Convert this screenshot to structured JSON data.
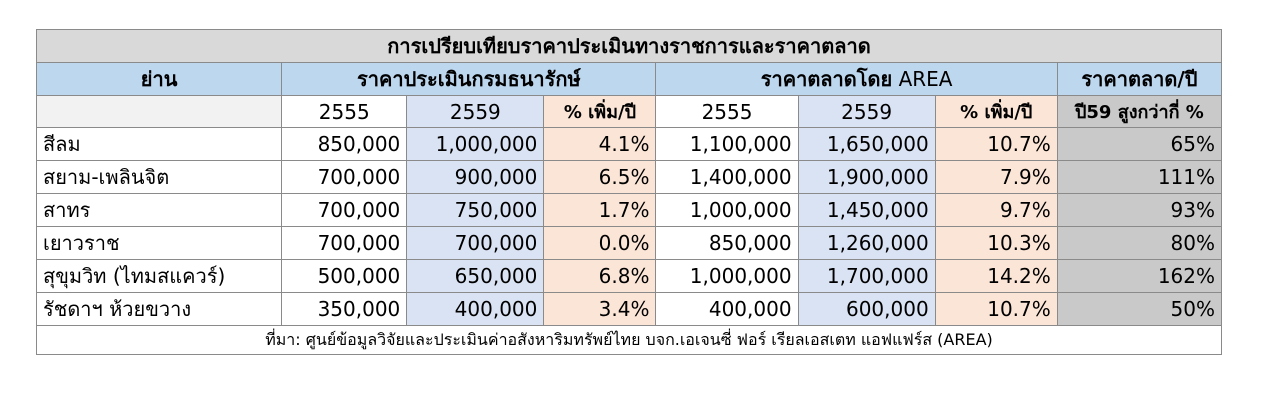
{
  "title": "การเปรียบเทียบราคาประเมินทางราชการและราคาตลาด",
  "headers": {
    "area": "ย่าน",
    "gov_price": "ราคาประเมินกรมธนารักษ์",
    "market_price_prefix": "ราคาตลาดโดย",
    "market_price_suffix": "AREA",
    "market_ratio": "ราคาตลาด/ปี"
  },
  "subheaders": {
    "blank": "",
    "gov_2555": "2555",
    "gov_2559": "2559",
    "gov_growth": "% เพิ่ม/ปี",
    "mkt_2555": "2555",
    "mkt_2559": "2559",
    "mkt_growth": "% เพิ่ม/ปี",
    "higher": "ปี59 สูงกว่ากี่ %"
  },
  "rows": [
    {
      "area": "สีลม",
      "gov_2555": "850,000",
      "gov_2559": "1,000,000",
      "gov_growth": "4.1%",
      "mkt_2555": "1,100,000",
      "mkt_2559": "1,650,000",
      "mkt_growth": "10.7%",
      "higher": "65%"
    },
    {
      "area": "สยาม-เพลินจิต",
      "gov_2555": "700,000",
      "gov_2559": "900,000",
      "gov_growth": "6.5%",
      "mkt_2555": "1,400,000",
      "mkt_2559": "1,900,000",
      "mkt_growth": "7.9%",
      "higher": "111%"
    },
    {
      "area": "สาทร",
      "gov_2555": "700,000",
      "gov_2559": "750,000",
      "gov_growth": "1.7%",
      "mkt_2555": "1,000,000",
      "mkt_2559": "1,450,000",
      "mkt_growth": "9.7%",
      "higher": "93%"
    },
    {
      "area": "เยาวราช",
      "gov_2555": "700,000",
      "gov_2559": "700,000",
      "gov_growth": "0.0%",
      "mkt_2555": "850,000",
      "mkt_2559": "1,260,000",
      "mkt_growth": "10.3%",
      "higher": "80%"
    },
    {
      "area": "สุขุมวิท (ไทมสแควร์)",
      "gov_2555": "500,000",
      "gov_2559": "650,000",
      "gov_growth": "6.8%",
      "mkt_2555": "1,000,000",
      "mkt_2559": "1,700,000",
      "mkt_growth": "14.2%",
      "higher": "162%"
    },
    {
      "area": "รัชดาฯ ห้วยขวาง",
      "gov_2555": "350,000",
      "gov_2559": "400,000",
      "gov_growth": "3.4%",
      "mkt_2555": "400,000",
      "mkt_2559": "600,000",
      "mkt_growth": "10.7%",
      "higher": "50%"
    }
  ],
  "source": "ที่มา: ศูนย์ข้อมูลวิจัยและประเมินค่าอสังหาริมทรัพย์ไทย บจก.เอเจนซี่ ฟอร์ เรียลเอสเตท แอฟแฟร์ส (AREA)",
  "colors": {
    "title_bg": "#d9d9d9",
    "header_bg": "#bdd7ee",
    "gov_column_bg": "#dae3f3",
    "growth_column_bg": "#fbe5d6",
    "ratio_column_bg": "#c9c9c9"
  }
}
